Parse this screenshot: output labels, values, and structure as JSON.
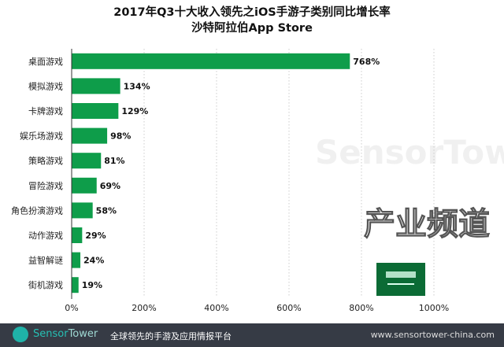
{
  "chart_data": {
    "type": "bar",
    "orientation": "horizontal",
    "title": "2017年Q3十大收入领先之iOS手游子类别同比增长率",
    "subtitle": "沙特阿拉伯App Store",
    "categories": [
      "桌面游戏",
      "模拟游戏",
      "卡牌游戏",
      "娱乐场游戏",
      "策略游戏",
      "冒险游戏",
      "角色扮演游戏",
      "动作游戏",
      "益智解谜",
      "街机游戏"
    ],
    "values": [
      768,
      134,
      129,
      98,
      81,
      69,
      58,
      29,
      24,
      19
    ],
    "data_labels": [
      "768%",
      "134%",
      "129%",
      "98%",
      "81%",
      "69%",
      "58%",
      "29%",
      "24%",
      "19%"
    ],
    "xlim": [
      0,
      1000
    ],
    "x_ticks": [
      "0%",
      "200%",
      "400%",
      "600%",
      "800%",
      "1000%"
    ],
    "grid": true,
    "bar_color": "#0e9d4a"
  },
  "watermark": "SensorTower",
  "watermark_overlay": "产业频道",
  "footer": {
    "brand_a": "Sensor",
    "brand_b": "Tower",
    "slogan": "全球领先的手游及应用情报平台",
    "url": "www.sensortower-china.com"
  },
  "flag": "saudi-arabia-flag"
}
